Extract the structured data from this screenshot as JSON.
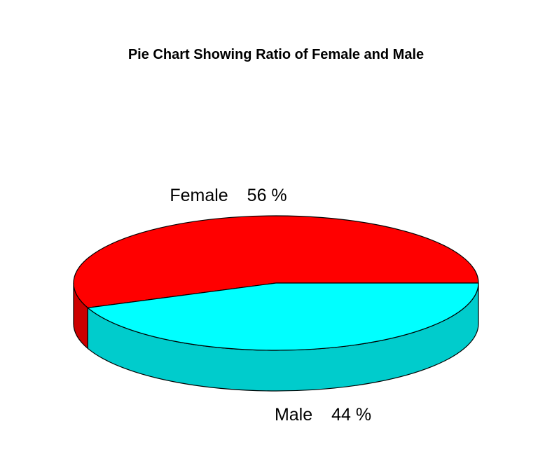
{
  "chart_data": {
    "type": "pie",
    "title": "Pie Chart Showing Ratio of Female and Male",
    "style": "3d",
    "slices": [
      {
        "label": "Female",
        "percent_label": "56 %",
        "value": 56,
        "color": "#ff0000",
        "side_color": "#cc0000"
      },
      {
        "label": "Male",
        "percent_label": "44 %",
        "value": 44,
        "color": "#00ffff",
        "side_color": "#00cccc"
      }
    ]
  }
}
